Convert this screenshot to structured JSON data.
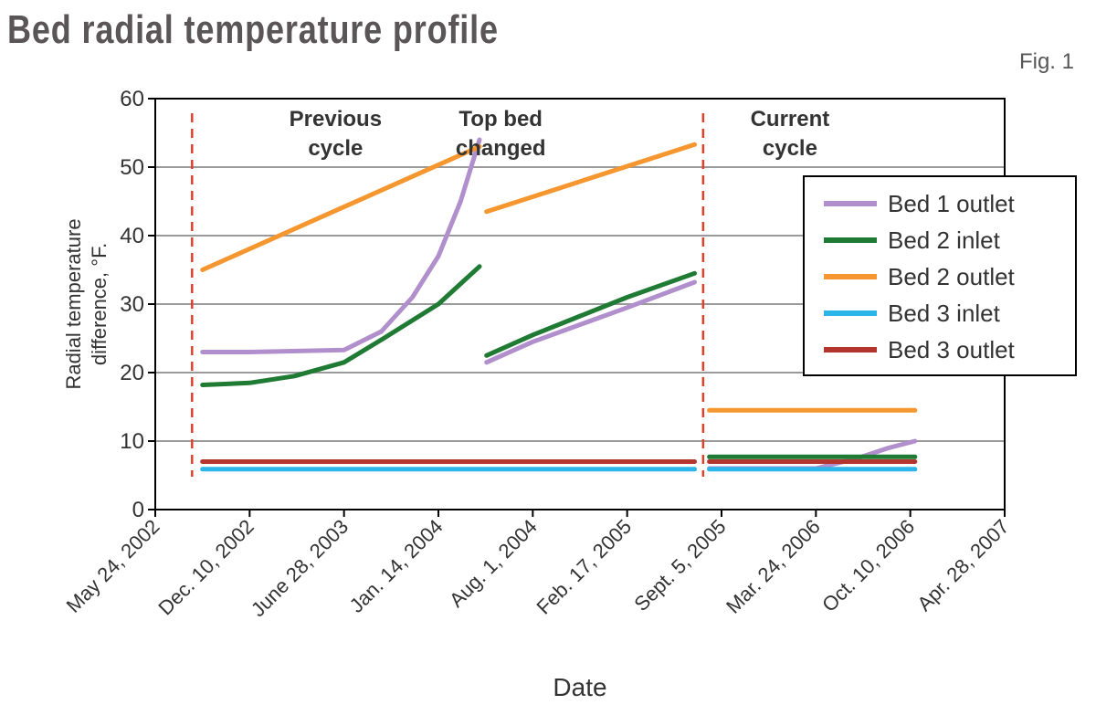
{
  "header": {
    "title": "Bed radial temperature profile",
    "fig_label": "Fig. 1"
  },
  "chart_data": {
    "type": "line",
    "title": "Bed radial temperature profile",
    "xlabel": "Date",
    "ylabel": "Radial temperature difference, °F.",
    "ylim": [
      0,
      60
    ],
    "yticks": [
      0,
      10,
      20,
      30,
      40,
      50,
      60
    ],
    "xlim": [
      "2002-05-24",
      "2007-04-28"
    ],
    "xticks": [
      {
        "date": "2002-05-24",
        "label": "May 24, 2002"
      },
      {
        "date": "2002-12-10",
        "label": "Dec. 10, 2002"
      },
      {
        "date": "2003-06-28",
        "label": "June 28, 2003"
      },
      {
        "date": "2004-01-14",
        "label": "Jan. 14, 2004"
      },
      {
        "date": "2004-08-01",
        "label": "Aug. 1, 2004"
      },
      {
        "date": "2005-02-17",
        "label": "Feb. 17, 2005"
      },
      {
        "date": "2005-09-05",
        "label": "Sept. 5, 2005"
      },
      {
        "date": "2006-03-24",
        "label": "Mar. 24, 2006"
      },
      {
        "date": "2006-10-10",
        "label": "Oct. 10, 2006"
      },
      {
        "date": "2007-04-28",
        "label": "Apr. 28, 2007"
      }
    ],
    "grid": "horizontal",
    "legend_position": "right",
    "annotations": [
      {
        "date": "2003-06-10",
        "y": 56,
        "text": [
          "Previous",
          "cycle"
        ]
      },
      {
        "date": "2004-05-25",
        "y": 56,
        "text": [
          "Top bed",
          "changed"
        ]
      },
      {
        "date": "2006-01-28",
        "y": 56,
        "text": [
          "Current",
          "cycle"
        ]
      }
    ],
    "cycle_markers": [
      {
        "date": "2002-08-10"
      },
      {
        "date": "2005-07-28"
      }
    ],
    "series": [
      {
        "name": "Bed 1 outlet",
        "color": "#b08fcc",
        "segments": [
          [
            [
              "2002-09-01",
              23
            ],
            [
              "2002-12-10",
              23
            ],
            [
              "2003-06-28",
              23.3
            ],
            [
              "2003-09-15",
              26
            ],
            [
              "2003-11-20",
              31
            ],
            [
              "2004-01-14",
              37
            ],
            [
              "2004-03-01",
              45
            ],
            [
              "2004-04-10",
              54
            ]
          ],
          [
            [
              "2004-04-25",
              21.5
            ],
            [
              "2004-08-01",
              24.5
            ],
            [
              "2005-02-17",
              29.5
            ],
            [
              "2005-07-10",
              33.2
            ]
          ],
          [
            [
              "2005-08-10",
              6
            ],
            [
              "2006-03-24",
              6
            ],
            [
              "2006-06-20",
              7.5
            ],
            [
              "2006-08-25",
              9
            ],
            [
              "2006-10-20",
              10
            ]
          ]
        ]
      },
      {
        "name": "Bed 2 inlet",
        "color": "#1f7a34",
        "segments": [
          [
            [
              "2002-09-01",
              18.2
            ],
            [
              "2002-12-10",
              18.5
            ],
            [
              "2003-03-15",
              19.5
            ],
            [
              "2003-06-28",
              21.5
            ],
            [
              "2003-09-20",
              25
            ],
            [
              "2004-01-14",
              30
            ],
            [
              "2004-04-10",
              35.5
            ]
          ],
          [
            [
              "2004-04-25",
              22.5
            ],
            [
              "2004-08-01",
              25.5
            ],
            [
              "2005-02-17",
              31
            ],
            [
              "2005-07-10",
              34.5
            ]
          ],
          [
            [
              "2005-08-10",
              7.7
            ],
            [
              "2006-10-20",
              7.7
            ]
          ]
        ]
      },
      {
        "name": "Bed 2 outlet",
        "color": "#f5962e",
        "segments": [
          [
            [
              "2002-09-01",
              35
            ],
            [
              "2004-04-10",
              53
            ]
          ],
          [
            [
              "2004-04-25",
              43.5
            ],
            [
              "2005-07-10",
              53.3
            ]
          ],
          [
            [
              "2005-08-10",
              14.5
            ],
            [
              "2006-10-20",
              14.5
            ]
          ]
        ]
      },
      {
        "name": "Bed 3 inlet",
        "color": "#2bb5e8",
        "segments": [
          [
            [
              "2002-09-01",
              5.9
            ],
            [
              "2005-07-10",
              5.9
            ]
          ],
          [
            [
              "2005-08-10",
              5.9
            ],
            [
              "2006-10-20",
              5.9
            ]
          ]
        ]
      },
      {
        "name": "Bed 3 outlet",
        "color": "#b3352e",
        "segments": [
          [
            [
              "2002-09-01",
              7
            ],
            [
              "2005-07-10",
              7
            ]
          ],
          [
            [
              "2005-08-10",
              7
            ],
            [
              "2006-10-20",
              7
            ]
          ]
        ]
      }
    ]
  }
}
